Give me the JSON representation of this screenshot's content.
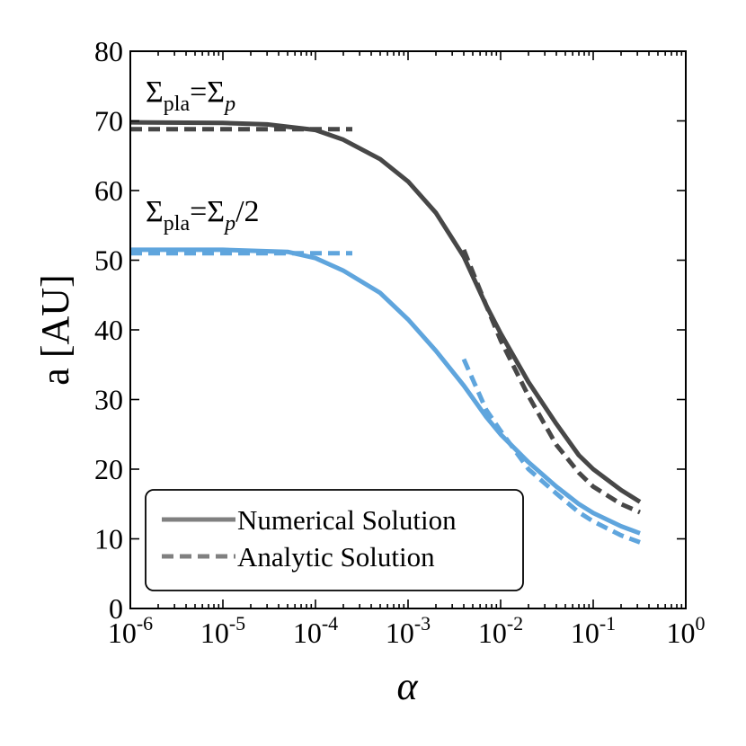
{
  "chart_data": {
    "type": "line",
    "xlabel": "α",
    "ylabel": "a [AU]",
    "xscale": "log",
    "xlim": [
      1e-06,
      1
    ],
    "ylim": [
      0,
      80
    ],
    "grid": false,
    "legend_placement": "lower-left",
    "y_ticks": [
      "0",
      "10",
      "20",
      "30",
      "40",
      "50",
      "60",
      "70",
      "80"
    ],
    "x_ticks": [
      {
        "base": "10",
        "exp": "-6"
      },
      {
        "base": "10",
        "exp": "-5"
      },
      {
        "base": "10",
        "exp": "-4"
      },
      {
        "base": "10",
        "exp": "-3"
      },
      {
        "base": "10",
        "exp": "-2"
      },
      {
        "base": "10",
        "exp": "-1"
      },
      {
        "base": "10",
        "exp": "0"
      }
    ],
    "annotations": [
      {
        "base": "Σ",
        "sub": "pla",
        "rest": "=Σ",
        "sub2": "p",
        "tail": ""
      },
      {
        "base": "Σ",
        "sub": "pla",
        "rest": "=Σ",
        "sub2": "p",
        "tail": "/2"
      }
    ],
    "legend": [
      {
        "label": "Numerical Solution",
        "style": "solid"
      },
      {
        "label": "Analytic Solution",
        "style": "dashed"
      }
    ],
    "colors": {
      "dark": "#474747",
      "blue": "#5fa5dd",
      "legend_line": "#808080"
    },
    "series": [
      {
        "color": "dark",
        "style": "solid",
        "points": [
          [
            1e-06,
            69.8
          ],
          [
            1e-05,
            69.7
          ],
          [
            3e-05,
            69.5
          ],
          [
            0.0001,
            68.7
          ],
          [
            0.0002,
            67.3
          ],
          [
            0.0005,
            64.5
          ],
          [
            0.001,
            61.3
          ],
          [
            0.002,
            56.8
          ],
          [
            0.004,
            50.5
          ],
          [
            0.007,
            43.5
          ],
          [
            0.01,
            39.5
          ],
          [
            0.02,
            32.5
          ],
          [
            0.04,
            26.5
          ],
          [
            0.07,
            22.0
          ],
          [
            0.1,
            20.0
          ],
          [
            0.2,
            17.0
          ],
          [
            0.32,
            15.3
          ]
        ]
      },
      {
        "color": "dark",
        "style": "dashed",
        "points": [
          [
            1e-06,
            68.8
          ],
          [
            0.00025,
            68.8
          ]
        ]
      },
      {
        "color": "dark",
        "style": "dashed",
        "points": [
          [
            0.004,
            51.5
          ],
          [
            0.007,
            43.5
          ],
          [
            0.01,
            38.5
          ],
          [
            0.02,
            30.5
          ],
          [
            0.04,
            23.5
          ],
          [
            0.07,
            19.5
          ],
          [
            0.1,
            17.5
          ],
          [
            0.2,
            15.0
          ],
          [
            0.32,
            13.8
          ]
        ]
      },
      {
        "color": "blue",
        "style": "solid",
        "points": [
          [
            1e-06,
            51.5
          ],
          [
            1e-05,
            51.5
          ],
          [
            5e-05,
            51.2
          ],
          [
            0.0001,
            50.3
          ],
          [
            0.0002,
            48.5
          ],
          [
            0.0005,
            45.3
          ],
          [
            0.001,
            41.5
          ],
          [
            0.002,
            37.0
          ],
          [
            0.004,
            32.0
          ],
          [
            0.007,
            27.5
          ],
          [
            0.01,
            25.0
          ],
          [
            0.02,
            21.0
          ],
          [
            0.04,
            17.5
          ],
          [
            0.07,
            15.0
          ],
          [
            0.1,
            13.7
          ],
          [
            0.2,
            11.8
          ],
          [
            0.32,
            10.8
          ]
        ]
      },
      {
        "color": "blue",
        "style": "dashed",
        "points": [
          [
            1e-06,
            51.0
          ],
          [
            0.00025,
            51.0
          ]
        ]
      },
      {
        "color": "blue",
        "style": "dashed",
        "points": [
          [
            0.004,
            35.8
          ],
          [
            0.007,
            28.5
          ],
          [
            0.01,
            25.5
          ],
          [
            0.02,
            20.0
          ],
          [
            0.04,
            16.5
          ],
          [
            0.07,
            13.8
          ],
          [
            0.1,
            12.5
          ],
          [
            0.2,
            10.5
          ],
          [
            0.32,
            9.5
          ]
        ]
      }
    ]
  }
}
